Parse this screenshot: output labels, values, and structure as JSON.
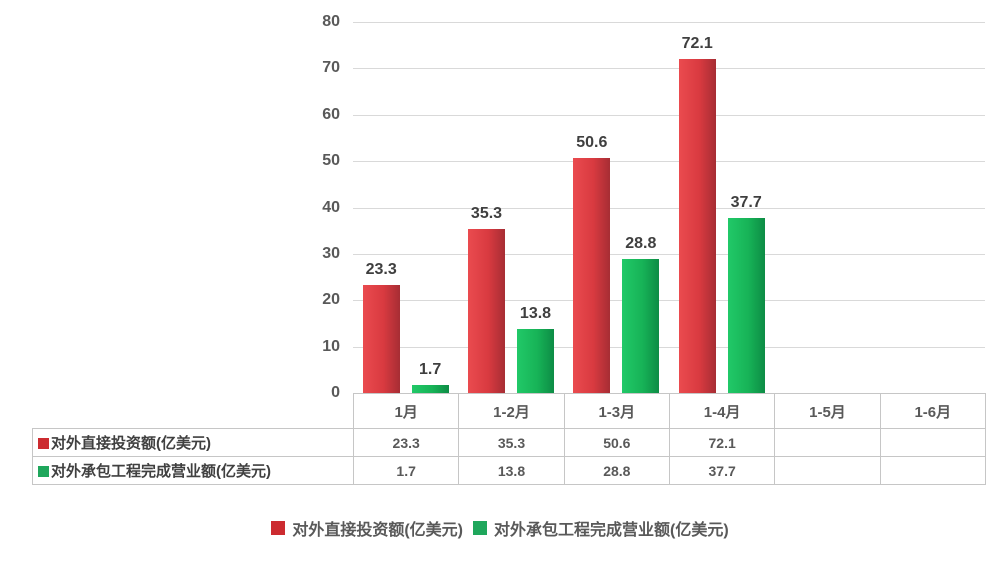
{
  "chart_data": {
    "type": "bar",
    "title": "",
    "xlabel": "",
    "ylabel": "",
    "categories": [
      "1月",
      "1-2月",
      "1-3月",
      "1-4月",
      "1-5月",
      "1-6月"
    ],
    "series": [
      {
        "id": "direct-investment",
        "name": "对外直接投资额(亿美元)",
        "color": "#cc2b30",
        "gradient": [
          "#ea4b4f",
          "#d93a40",
          "#a62d34"
        ],
        "values": [
          23.3,
          35.3,
          50.6,
          72.1,
          null,
          null
        ],
        "labels": [
          "23.3",
          "35.3",
          "50.6",
          "72.1",
          "",
          ""
        ]
      },
      {
        "id": "contracted-projects",
        "name": "对外承包工程完成营业额(亿美元)",
        "color": "#1fa75c",
        "gradient": [
          "#21c968",
          "#17b357",
          "#0d8c45"
        ],
        "values": [
          1.7,
          13.8,
          28.8,
          37.7,
          null,
          null
        ],
        "labels": [
          "1.7",
          "13.8",
          "28.8",
          "37.7",
          "",
          ""
        ]
      }
    ],
    "ylim": [
      0,
      80
    ],
    "y_ticks": [
      0,
      10,
      20,
      30,
      40,
      50,
      60,
      70,
      80
    ],
    "grid": true,
    "data_labels": true,
    "legend_position": "bottom",
    "show_data_table": true
  },
  "table": {
    "corner_label": "",
    "empty_value": ""
  },
  "colors": {
    "grid": "#d9d9d9",
    "axis_text": "#595959",
    "data_label_text": "#3f3f3f",
    "table_border": "#c6c6c6",
    "background": "#ffffff"
  }
}
